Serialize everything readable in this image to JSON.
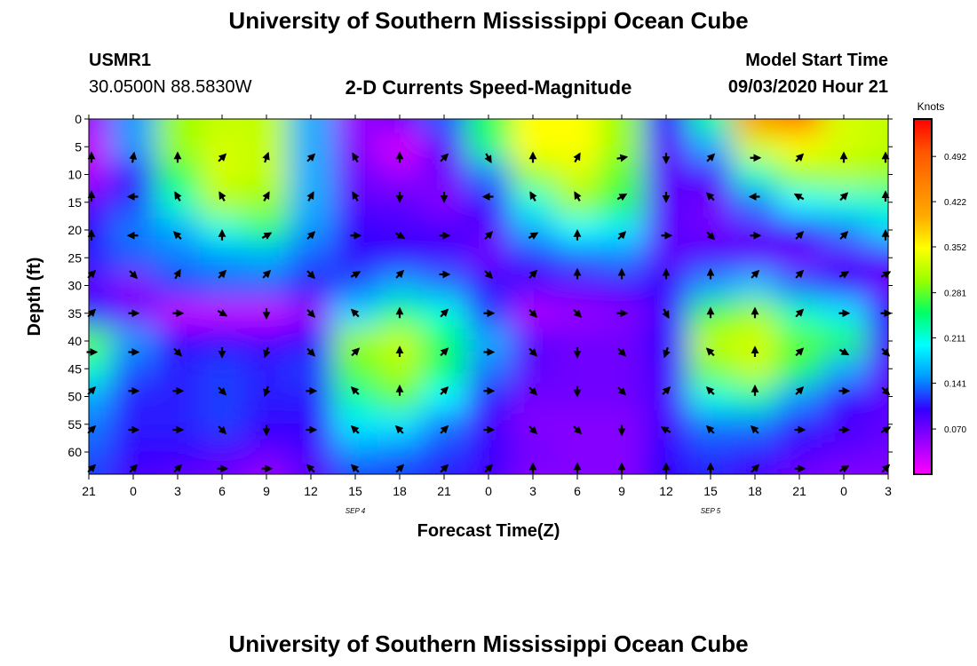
{
  "header": {
    "title": "University of Southern Mississippi Ocean Cube",
    "station_id": "USMR1",
    "station_coords": "30.0500N 88.5830W",
    "subtitle": "2-D Currents Speed-Magnitude",
    "model_start_label": "Model Start Time",
    "model_start_value": "09/03/2020 Hour 21"
  },
  "footer": {
    "title": "University of Southern Mississippi Ocean Cube"
  },
  "colors": {
    "colormap": [
      "#ff00ff",
      "#9900ff",
      "#3300ff",
      "#0099ff",
      "#00ffff",
      "#00ff66",
      "#99ff00",
      "#ffff00",
      "#ffaa00",
      "#ff8000",
      "#ff5500",
      "#ff0000"
    ]
  },
  "chart_data": {
    "type": "heatmap",
    "title": "2-D Currents Speed-Magnitude",
    "xlabel": "Forecast Time(Z)",
    "ylabel": "Depth (ft)",
    "colorbar_label": "Knots",
    "x_tick_labels": [
      "21",
      "0",
      "3",
      "6",
      "9",
      "12",
      "15",
      "18",
      "21",
      "0",
      "3",
      "6",
      "9",
      "12",
      "15",
      "18",
      "21",
      "0",
      "3"
    ],
    "date_labels": [
      {
        "text": "SEP 4",
        "forecast_hour": 18
      },
      {
        "text": "SEP 5",
        "forecast_hour": 42
      }
    ],
    "y_ticks": [
      0,
      5,
      10,
      15,
      20,
      25,
      30,
      35,
      40,
      45,
      50,
      55,
      60
    ],
    "xlim": [
      0,
      54
    ],
    "ylim": [
      0,
      64
    ],
    "colorbar_ticks": [
      0.07,
      0.141,
      0.211,
      0.281,
      0.352,
      0.422,
      0.492
    ],
    "colorbar_tick_labels": [
      "0.070",
      "0.141",
      "0.211",
      "0.281",
      "0.352",
      "0.422",
      "0.492"
    ],
    "colorbar_range": [
      0.0,
      0.55
    ],
    "x_hours": [
      0,
      3,
      6,
      9,
      12,
      15,
      18,
      21,
      24,
      27,
      30,
      33,
      36,
      39,
      42,
      45,
      48,
      51,
      54
    ],
    "depths_ft": [
      0,
      5,
      10,
      15,
      20,
      25,
      30,
      35,
      40,
      45,
      50,
      55,
      60,
      64
    ],
    "speed_knots": [
      [
        0.05,
        0.15,
        0.3,
        0.32,
        0.32,
        0.16,
        0.05,
        0.07,
        0.13,
        0.26,
        0.35,
        0.35,
        0.3,
        0.1,
        0.23,
        0.42,
        0.47,
        0.33,
        0.32
      ],
      [
        0.03,
        0.15,
        0.3,
        0.33,
        0.32,
        0.16,
        0.06,
        0.02,
        0.08,
        0.24,
        0.35,
        0.35,
        0.3,
        0.08,
        0.16,
        0.33,
        0.35,
        0.33,
        0.32
      ],
      [
        0.04,
        0.1,
        0.26,
        0.33,
        0.32,
        0.16,
        0.07,
        0.05,
        0.07,
        0.14,
        0.3,
        0.33,
        0.28,
        0.08,
        0.09,
        0.22,
        0.3,
        0.31,
        0.3
      ],
      [
        0.08,
        0.12,
        0.22,
        0.31,
        0.3,
        0.16,
        0.08,
        0.08,
        0.06,
        0.1,
        0.21,
        0.3,
        0.26,
        0.08,
        0.07,
        0.14,
        0.2,
        0.21,
        0.22
      ],
      [
        0.1,
        0.14,
        0.16,
        0.21,
        0.24,
        0.15,
        0.1,
        0.09,
        0.09,
        0.08,
        0.16,
        0.2,
        0.19,
        0.08,
        0.07,
        0.08,
        0.1,
        0.14,
        0.18
      ],
      [
        0.11,
        0.13,
        0.14,
        0.15,
        0.16,
        0.13,
        0.1,
        0.1,
        0.09,
        0.07,
        0.11,
        0.13,
        0.14,
        0.08,
        0.09,
        0.08,
        0.07,
        0.08,
        0.09
      ],
      [
        0.08,
        0.06,
        0.12,
        0.13,
        0.13,
        0.11,
        0.13,
        0.16,
        0.14,
        0.1,
        0.08,
        0.08,
        0.09,
        0.1,
        0.15,
        0.17,
        0.13,
        0.1,
        0.07
      ],
      [
        0.11,
        0.07,
        0.03,
        0.03,
        0.03,
        0.05,
        0.18,
        0.24,
        0.21,
        0.12,
        0.04,
        0.05,
        0.06,
        0.09,
        0.27,
        0.3,
        0.22,
        0.19,
        0.1
      ],
      [
        0.28,
        0.15,
        0.1,
        0.1,
        0.09,
        0.1,
        0.3,
        0.32,
        0.25,
        0.16,
        0.08,
        0.07,
        0.07,
        0.1,
        0.32,
        0.33,
        0.28,
        0.26,
        0.09
      ],
      [
        0.22,
        0.13,
        0.11,
        0.12,
        0.11,
        0.12,
        0.28,
        0.31,
        0.25,
        0.14,
        0.08,
        0.07,
        0.07,
        0.09,
        0.29,
        0.32,
        0.26,
        0.16,
        0.08
      ],
      [
        0.16,
        0.11,
        0.11,
        0.12,
        0.11,
        0.11,
        0.23,
        0.28,
        0.2,
        0.11,
        0.07,
        0.07,
        0.07,
        0.09,
        0.21,
        0.23,
        0.15,
        0.1,
        0.08
      ],
      [
        0.14,
        0.11,
        0.11,
        0.12,
        0.1,
        0.1,
        0.19,
        0.19,
        0.14,
        0.09,
        0.06,
        0.06,
        0.06,
        0.09,
        0.14,
        0.14,
        0.11,
        0.09,
        0.08
      ],
      [
        0.13,
        0.1,
        0.1,
        0.09,
        0.08,
        0.09,
        0.15,
        0.14,
        0.12,
        0.1,
        0.07,
        0.06,
        0.06,
        0.1,
        0.12,
        0.11,
        0.09,
        0.08,
        0.07
      ],
      [
        0.12,
        0.09,
        0.08,
        0.07,
        0.05,
        0.08,
        0.12,
        0.12,
        0.11,
        0.09,
        0.06,
        0.06,
        0.06,
        0.1,
        0.11,
        0.09,
        0.07,
        0.06,
        0.06
      ]
    ],
    "vector_hours": [
      0,
      3,
      6,
      9,
      12,
      15,
      18,
      21,
      24,
      27,
      30,
      33,
      36,
      39,
      42,
      45,
      48,
      51,
      54
    ],
    "vector_depths_ft": [
      7,
      14,
      21,
      28,
      35,
      42,
      49,
      56,
      63
    ],
    "vector_direction_deg": [
      [
        0,
        10,
        0,
        45,
        20,
        45,
        330,
        0,
        45,
        150,
        0,
        30,
        80,
        180,
        45,
        90,
        45,
        0,
        0
      ],
      [
        0,
        270,
        330,
        330,
        30,
        30,
        330,
        180,
        180,
        270,
        330,
        330,
        60,
        180,
        315,
        270,
        300,
        45,
        0
      ],
      [
        0,
        270,
        315,
        0,
        60,
        45,
        90,
        120,
        90,
        45,
        60,
        0,
        45,
        90,
        135,
        90,
        45,
        45,
        0
      ],
      [
        45,
        135,
        30,
        45,
        45,
        135,
        60,
        45,
        90,
        135,
        45,
        0,
        0,
        0,
        0,
        45,
        45,
        60,
        60
      ],
      [
        45,
        90,
        90,
        120,
        180,
        135,
        315,
        0,
        45,
        90,
        135,
        135,
        90,
        150,
        0,
        0,
        45,
        90,
        90
      ],
      [
        90,
        90,
        135,
        180,
        200,
        135,
        45,
        0,
        45,
        90,
        135,
        180,
        135,
        200,
        315,
        0,
        45,
        120,
        135
      ],
      [
        45,
        90,
        90,
        135,
        200,
        90,
        315,
        0,
        45,
        90,
        135,
        180,
        135,
        45,
        315,
        0,
        45,
        90,
        135
      ],
      [
        45,
        90,
        90,
        135,
        180,
        90,
        315,
        315,
        45,
        90,
        135,
        135,
        180,
        300,
        315,
        315,
        90,
        90,
        60
      ],
      [
        45,
        45,
        45,
        90,
        90,
        315,
        315,
        45,
        45,
        45,
        0,
        0,
        0,
        0,
        0,
        45,
        90,
        60,
        45
      ]
    ]
  }
}
